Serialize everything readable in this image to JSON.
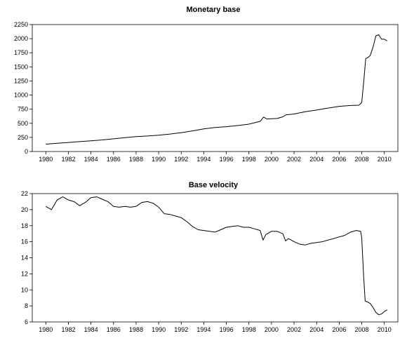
{
  "chart_data": [
    {
      "type": "line",
      "title": "Monetary base",
      "xlabel": "",
      "ylabel": "",
      "xlim": [
        1978.8,
        2011.2
      ],
      "ylim": [
        0,
        2250
      ],
      "x_ticks": [
        "1980",
        "1982",
        "1984",
        "1986",
        "1988",
        "1990",
        "1992",
        "1994",
        "1996",
        "1998",
        "2000",
        "2002",
        "2004",
        "2006",
        "2008",
        "2010"
      ],
      "y_ticks": [
        "0",
        "250",
        "500",
        "750",
        "1000",
        "1250",
        "1500",
        "1750",
        "2000",
        "2250"
      ],
      "grid": false,
      "series": [
        {
          "x": [
            1980.0,
            1981.0,
            1982.0,
            1983.0,
            1984.0,
            1985.0,
            1986.0,
            1987.0,
            1988.0,
            1989.0,
            1990.0,
            1991.0,
            1992.0,
            1993.0,
            1994.0,
            1995.0,
            1996.0,
            1997.0,
            1998.0,
            1999.0,
            1999.3,
            1999.6,
            2000.0,
            2000.5,
            2001.0,
            2001.3,
            2002.0,
            2003.0,
            2004.0,
            2005.0,
            2006.0,
            2007.0,
            2007.75,
            2008.0,
            2008.2,
            2008.35,
            2008.5,
            2008.75,
            2009.0,
            2009.25,
            2009.5,
            2009.75,
            2010.0,
            2010.25
          ],
          "values": [
            130,
            145,
            160,
            175,
            190,
            205,
            225,
            245,
            265,
            275,
            290,
            310,
            335,
            365,
            400,
            425,
            440,
            460,
            485,
            535,
            610,
            575,
            580,
            585,
            615,
            650,
            665,
            705,
            735,
            770,
            800,
            815,
            820,
            870,
            1300,
            1650,
            1660,
            1700,
            1850,
            2050,
            2070,
            1990,
            1990,
            1960
          ]
        }
      ]
    },
    {
      "type": "line",
      "title": "Base velocity",
      "xlabel": "",
      "ylabel": "",
      "xlim": [
        1978.8,
        2011.2
      ],
      "ylim": [
        6,
        22
      ],
      "x_ticks": [
        "1980",
        "1982",
        "1984",
        "1986",
        "1988",
        "1990",
        "1992",
        "1994",
        "1996",
        "1998",
        "2000",
        "2002",
        "2004",
        "2006",
        "2008",
        "2010"
      ],
      "y_ticks": [
        "6",
        "8",
        "10",
        "12",
        "14",
        "16",
        "18",
        "20",
        "22"
      ],
      "grid": false,
      "series": [
        {
          "x": [
            1980.0,
            1980.5,
            1981.0,
            1981.5,
            1982.0,
            1982.5,
            1983.0,
            1983.5,
            1984.0,
            1984.5,
            1985.0,
            1985.5,
            1986.0,
            1986.5,
            1987.0,
            1987.5,
            1988.0,
            1988.5,
            1989.0,
            1989.5,
            1990.0,
            1990.5,
            1991.0,
            1991.5,
            1992.0,
            1992.5,
            1993.0,
            1993.5,
            1994.0,
            1994.5,
            1995.0,
            1995.5,
            1996.0,
            1996.5,
            1997.0,
            1997.5,
            1998.0,
            1998.5,
            1999.0,
            1999.25,
            1999.5,
            2000.0,
            2000.5,
            2001.0,
            2001.25,
            2001.5,
            2002.0,
            2002.5,
            2003.0,
            2003.5,
            2004.0,
            2004.5,
            2005.0,
            2005.5,
            2006.0,
            2006.5,
            2007.0,
            2007.5,
            2007.9,
            2008.0,
            2008.15,
            2008.3,
            2008.5,
            2008.75,
            2009.0,
            2009.25,
            2009.5,
            2009.75,
            2010.0,
            2010.25
          ],
          "values": [
            20.4,
            20.0,
            21.2,
            21.6,
            21.2,
            21.0,
            20.5,
            20.9,
            21.5,
            21.6,
            21.3,
            21.0,
            20.4,
            20.3,
            20.4,
            20.3,
            20.4,
            20.9,
            21.0,
            20.8,
            20.3,
            19.5,
            19.4,
            19.2,
            19.0,
            18.5,
            17.9,
            17.5,
            17.4,
            17.3,
            17.2,
            17.5,
            17.8,
            17.9,
            18.0,
            17.8,
            17.8,
            17.6,
            17.4,
            16.2,
            16.9,
            17.3,
            17.3,
            17.0,
            16.1,
            16.4,
            16.0,
            15.7,
            15.6,
            15.8,
            15.9,
            16.0,
            16.2,
            16.4,
            16.6,
            16.8,
            17.2,
            17.4,
            17.3,
            16.5,
            12.0,
            8.6,
            8.5,
            8.3,
            7.8,
            7.2,
            6.9,
            7.0,
            7.3,
            7.5
          ]
        }
      ]
    }
  ]
}
